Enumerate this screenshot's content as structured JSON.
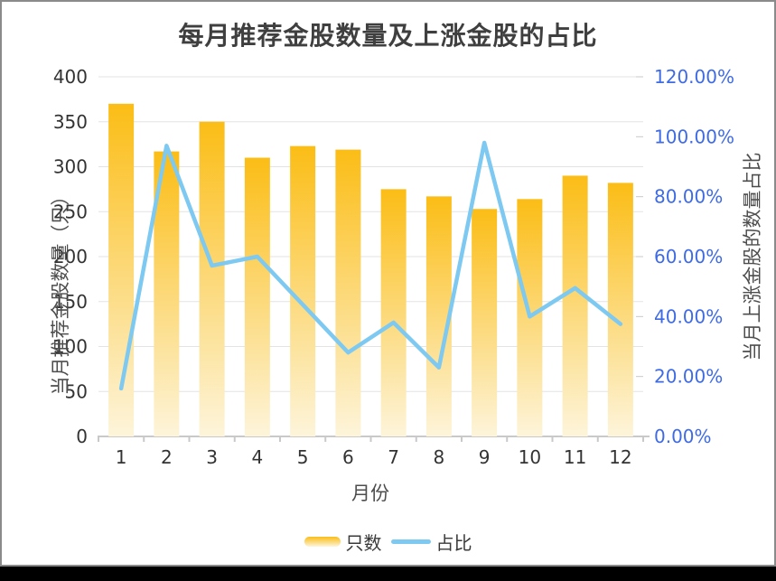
{
  "window": {
    "background": "#000000",
    "panel_background": "#ffffff",
    "panel_border_color": "#8a8a8a"
  },
  "chart_data": {
    "type": "bar+line (dual y-axis)",
    "title": "每月推荐金股数量及上涨金股的占比",
    "xlabel": "月份",
    "categories": [
      "1",
      "2",
      "3",
      "4",
      "5",
      "6",
      "7",
      "8",
      "9",
      "10",
      "11",
      "12"
    ],
    "y_left": {
      "label": "当月推荐金股数量（只）",
      "min": 0,
      "max": 400,
      "tick_step": 50,
      "tick_labels": [
        "0",
        "50",
        "100",
        "150",
        "200",
        "250",
        "300",
        "350",
        "400"
      ]
    },
    "y_right": {
      "label": "当月上涨金股的数量占比",
      "min": 0,
      "max": 120,
      "tick_step": 20,
      "unit": "%",
      "tick_labels": [
        "0.00%",
        "20.00%",
        "40.00%",
        "60.00%",
        "80.00%",
        "100.00%",
        "120.00%"
      ]
    },
    "series": [
      {
        "name": "只数",
        "type": "bar",
        "axis": "left",
        "values": [
          370,
          317,
          350,
          310,
          323,
          319,
          275,
          267,
          253,
          264,
          290,
          282
        ],
        "color_top": "#FBBD16",
        "color_bottom": "#FDF4DA"
      },
      {
        "name": "占比",
        "type": "line",
        "axis": "right",
        "values_percent": [
          16,
          97,
          57,
          60,
          44,
          28,
          38,
          23,
          98,
          40,
          49.5,
          37.5
        ],
        "color": "#7DC9F1"
      }
    ],
    "legend": {
      "position": "bottom",
      "items": [
        "只数",
        "占比"
      ]
    },
    "grid": true,
    "colors": {
      "grid_line": "#E3E3E3",
      "axis_line": "#C9C9C9",
      "left_tick_text": "#333333",
      "right_tick_text": "#3E6BE5",
      "x_tick_text": "#333333",
      "title_text": "#3f3f3f",
      "axis_name_text": "#4d4d4d"
    }
  }
}
